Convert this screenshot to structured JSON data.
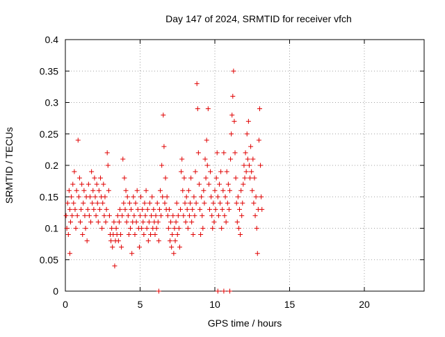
{
  "chart_data": {
    "type": "scatter",
    "title": "Day 147 of 2024, SRMTID for receiver vfch",
    "xlabel": "GPS time / hours",
    "ylabel": "SRMTID / TECUs",
    "xlim": [
      0,
      24
    ],
    "ylim": [
      0,
      0.4
    ],
    "x_ticks": [
      0,
      5,
      10,
      15,
      20
    ],
    "x_tick_labels": [
      "0",
      "5",
      "10",
      "15",
      "20"
    ],
    "y_ticks": [
      0,
      0.05,
      0.1,
      0.15,
      0.2,
      0.25,
      0.3,
      0.35,
      0.4
    ],
    "y_tick_labels": [
      "0",
      "0.05",
      "0.1",
      "0.15",
      "0.2",
      "0.25",
      "0.3",
      "0.35",
      "0.4"
    ],
    "grid": true,
    "marker": "+",
    "series_color": "#e00000",
    "series": [
      {
        "points": [
          [
            0.05,
            0.12
          ],
          [
            0.1,
            0.1
          ],
          [
            0.15,
            0.14
          ],
          [
            0.2,
            0.09
          ],
          [
            0.25,
            0.16
          ],
          [
            0.3,
            0.13
          ],
          [
            0.3,
            0.06
          ],
          [
            0.35,
            0.11
          ],
          [
            0.4,
            0.15
          ],
          [
            0.45,
            0.12
          ],
          [
            0.5,
            0.17
          ],
          [
            0.55,
            0.14
          ],
          [
            0.6,
            0.19
          ],
          [
            0.65,
            0.13
          ],
          [
            0.7,
            0.1
          ],
          [
            0.75,
            0.16
          ],
          [
            0.8,
            0.12
          ],
          [
            0.85,
            0.24
          ],
          [
            0.9,
            0.15
          ],
          [
            0.95,
            0.18
          ],
          [
            1.0,
            0.11
          ],
          [
            1.05,
            0.13
          ],
          [
            1.1,
            0.17
          ],
          [
            1.15,
            0.09
          ],
          [
            1.2,
            0.14
          ],
          [
            1.25,
            0.16
          ],
          [
            1.3,
            0.12
          ],
          [
            1.35,
            0.1
          ],
          [
            1.4,
            0.15
          ],
          [
            1.45,
            0.08
          ],
          [
            1.5,
            0.13
          ],
          [
            1.55,
            0.17
          ],
          [
            1.6,
            0.12
          ],
          [
            1.65,
            0.15
          ],
          [
            1.7,
            0.11
          ],
          [
            1.75,
            0.19
          ],
          [
            1.8,
            0.14
          ],
          [
            1.85,
            0.16
          ],
          [
            1.9,
            0.13
          ],
          [
            1.95,
            0.18
          ],
          [
            2.0,
            0.15
          ],
          [
            2.05,
            0.12
          ],
          [
            2.1,
            0.17
          ],
          [
            2.15,
            0.14
          ],
          [
            2.2,
            0.11
          ],
          [
            2.25,
            0.16
          ],
          [
            2.3,
            0.13
          ],
          [
            2.35,
            0.18
          ],
          [
            2.4,
            0.15
          ],
          [
            2.45,
            0.1
          ],
          [
            2.5,
            0.14
          ],
          [
            2.55,
            0.17
          ],
          [
            2.6,
            0.12
          ],
          [
            2.65,
            0.15
          ],
          [
            2.7,
            0.11
          ],
          [
            2.75,
            0.13
          ],
          [
            2.8,
            0.22
          ],
          [
            2.85,
            0.2
          ],
          [
            2.9,
            0.16
          ],
          [
            2.95,
            0.12
          ],
          [
            3.0,
            0.09
          ],
          [
            3.05,
            0.08
          ],
          [
            3.1,
            0.1
          ],
          [
            3.15,
            0.07
          ],
          [
            3.2,
            0.09
          ],
          [
            3.25,
            0.11
          ],
          [
            3.3,
            0.04
          ],
          [
            3.35,
            0.08
          ],
          [
            3.4,
            0.1
          ],
          [
            3.45,
            0.09
          ],
          [
            3.5,
            0.12
          ],
          [
            3.55,
            0.08
          ],
          [
            3.6,
            0.11
          ],
          [
            3.65,
            0.13
          ],
          [
            3.7,
            0.09
          ],
          [
            3.75,
            0.07
          ],
          [
            3.8,
            0.12
          ],
          [
            3.85,
            0.21
          ],
          [
            3.9,
            0.14
          ],
          [
            3.95,
            0.18
          ],
          [
            4.0,
            0.13
          ],
          [
            4.05,
            0.16
          ],
          [
            4.1,
            0.11
          ],
          [
            4.15,
            0.15
          ],
          [
            4.2,
            0.12
          ],
          [
            4.25,
            0.09
          ],
          [
            4.3,
            0.14
          ],
          [
            4.35,
            0.1
          ],
          [
            4.4,
            0.13
          ],
          [
            4.45,
            0.06
          ],
          [
            4.5,
            0.11
          ],
          [
            4.55,
            0.15
          ],
          [
            4.6,
            0.12
          ],
          [
            4.65,
            0.09
          ],
          [
            4.7,
            0.14
          ],
          [
            4.75,
            0.11
          ],
          [
            4.8,
            0.16
          ],
          [
            4.85,
            0.13
          ],
          [
            4.9,
            0.1
          ],
          [
            4.95,
            0.07
          ],
          [
            5.0,
            0.12
          ],
          [
            5.05,
            0.15
          ],
          [
            5.1,
            0.1
          ],
          [
            5.15,
            0.13
          ],
          [
            5.2,
            0.11
          ],
          [
            5.25,
            0.09
          ],
          [
            5.3,
            0.14
          ],
          [
            5.35,
            0.12
          ],
          [
            5.4,
            0.16
          ],
          [
            5.45,
            0.1
          ],
          [
            5.5,
            0.13
          ],
          [
            5.55,
            0.08
          ],
          [
            5.6,
            0.11
          ],
          [
            5.65,
            0.14
          ],
          [
            5.7,
            0.09
          ],
          [
            5.75,
            0.12
          ],
          [
            5.8,
            0.15
          ],
          [
            5.85,
            0.1
          ],
          [
            5.9,
            0.13
          ],
          [
            5.95,
            0.11
          ],
          [
            6.0,
            0.09
          ],
          [
            6.05,
            0.12
          ],
          [
            6.1,
            0.1
          ],
          [
            6.15,
            0.14
          ],
          [
            6.2,
            0.11
          ],
          [
            6.25,
            0.08
          ],
          [
            6.3,
            0.13
          ],
          [
            6.35,
            0.16
          ],
          [
            6.4,
            0.12
          ],
          [
            6.45,
            0.2
          ],
          [
            6.5,
            0.15
          ],
          [
            6.55,
            0.28
          ],
          [
            6.6,
            0.23
          ],
          [
            6.65,
            0.14
          ],
          [
            6.7,
            0.18
          ],
          [
            6.75,
            0.13
          ],
          [
            6.8,
            0.15
          ],
          [
            6.85,
            0.12
          ],
          [
            6.9,
            0.1
          ],
          [
            6.95,
            0.13
          ],
          [
            7.0,
            0.08
          ],
          [
            7.05,
            0.11
          ],
          [
            7.1,
            0.07
          ],
          [
            7.15,
            0.09
          ],
          [
            7.2,
            0.12
          ],
          [
            7.25,
            0.06
          ],
          [
            7.3,
            0.1
          ],
          [
            7.35,
            0.08
          ],
          [
            7.4,
            0.11
          ],
          [
            7.45,
            0.14
          ],
          [
            7.5,
            0.09
          ],
          [
            7.55,
            0.12
          ],
          [
            7.6,
            0.1
          ],
          [
            7.65,
            0.07
          ],
          [
            7.7,
            0.13
          ],
          [
            7.75,
            0.19
          ],
          [
            7.8,
            0.21
          ],
          [
            7.85,
            0.16
          ],
          [
            7.9,
            0.12
          ],
          [
            7.95,
            0.18
          ],
          [
            8.0,
            0.14
          ],
          [
            8.05,
            0.11
          ],
          [
            8.1,
            0.15
          ],
          [
            8.15,
            0.13
          ],
          [
            8.2,
            0.1
          ],
          [
            8.25,
            0.16
          ],
          [
            8.3,
            0.12
          ],
          [
            8.35,
            0.14
          ],
          [
            8.4,
            0.18
          ],
          [
            8.45,
            0.11
          ],
          [
            8.5,
            0.13
          ],
          [
            8.55,
            0.09
          ],
          [
            8.6,
            0.15
          ],
          [
            8.65,
            0.12
          ],
          [
            8.7,
            0.19
          ],
          [
            8.75,
            0.14
          ],
          [
            8.8,
            0.33
          ],
          [
            8.85,
            0.29
          ],
          [
            8.9,
            0.22
          ],
          [
            8.95,
            0.17
          ],
          [
            9.0,
            0.13
          ],
          [
            9.05,
            0.09
          ],
          [
            9.1,
            0.15
          ],
          [
            9.15,
            0.12
          ],
          [
            9.2,
            0.1
          ],
          [
            9.25,
            0.16
          ],
          [
            9.3,
            0.14
          ],
          [
            9.35,
            0.21
          ],
          [
            9.4,
            0.18
          ],
          [
            9.45,
            0.24
          ],
          [
            9.5,
            0.2
          ],
          [
            9.55,
            0.29
          ],
          [
            9.6,
            0.17
          ],
          [
            9.65,
            0.13
          ],
          [
            9.7,
            0.19
          ],
          [
            9.75,
            0.15
          ],
          [
            9.8,
            0.12
          ],
          [
            9.85,
            0.1
          ],
          [
            9.9,
            0.14
          ],
          [
            9.95,
            0.11
          ],
          [
            10.0,
            0.16
          ],
          [
            10.05,
            0.13
          ],
          [
            10.1,
            0.18
          ],
          [
            10.15,
            0.22
          ],
          [
            10.2,
            0.15
          ],
          [
            10.25,
            0.12
          ],
          [
            10.3,
            0.17
          ],
          [
            10.35,
            0.14
          ],
          [
            10.4,
            0.19
          ],
          [
            10.45,
            0.1
          ],
          [
            10.5,
            0.13
          ],
          [
            10.55,
            0.16
          ],
          [
            10.6,
            0.22
          ],
          [
            10.65,
            0.12
          ],
          [
            10.7,
            0.15
          ],
          [
            10.75,
            0.11
          ],
          [
            10.8,
            0.19
          ],
          [
            10.85,
            0.14
          ],
          [
            10.9,
            0.17
          ],
          [
            10.95,
            0.13
          ],
          [
            11.0,
            0.16
          ],
          [
            11.05,
            0.21
          ],
          [
            11.1,
            0.25
          ],
          [
            11.15,
            0.28
          ],
          [
            11.2,
            0.31
          ],
          [
            11.25,
            0.35
          ],
          [
            11.3,
            0.27
          ],
          [
            11.35,
            0.22
          ],
          [
            11.4,
            0.18
          ],
          [
            11.45,
            0.14
          ],
          [
            11.5,
            0.11
          ],
          [
            11.55,
            0.15
          ],
          [
            11.6,
            0.1
          ],
          [
            11.65,
            0.13
          ],
          [
            11.7,
            0.09
          ],
          [
            11.75,
            0.16
          ],
          [
            11.8,
            0.12
          ],
          [
            11.85,
            0.14
          ],
          [
            11.9,
            0.17
          ],
          [
            11.95,
            0.2
          ],
          [
            12.0,
            0.18
          ],
          [
            12.05,
            0.22
          ],
          [
            12.1,
            0.19
          ],
          [
            12.15,
            0.25
          ],
          [
            12.2,
            0.21
          ],
          [
            12.25,
            0.27
          ],
          [
            12.3,
            0.2
          ],
          [
            12.35,
            0.18
          ],
          [
            12.4,
            0.23
          ],
          [
            12.45,
            0.19
          ],
          [
            12.5,
            0.16
          ],
          [
            12.55,
            0.21
          ],
          [
            12.6,
            0.14
          ],
          [
            12.65,
            0.18
          ],
          [
            12.7,
            0.12
          ],
          [
            12.75,
            0.15
          ],
          [
            12.8,
            0.1
          ],
          [
            12.85,
            0.06
          ],
          [
            12.9,
            0.13
          ],
          [
            12.95,
            0.24
          ],
          [
            13.0,
            0.29
          ],
          [
            13.05,
            0.2
          ],
          [
            13.1,
            0.15
          ],
          [
            13.15,
            0.13
          ]
        ]
      },
      {
        "points": [
          [
            6.25,
            0
          ],
          [
            10.2,
            0
          ],
          [
            10.6,
            0
          ],
          [
            11.0,
            0
          ]
        ]
      }
    ]
  }
}
